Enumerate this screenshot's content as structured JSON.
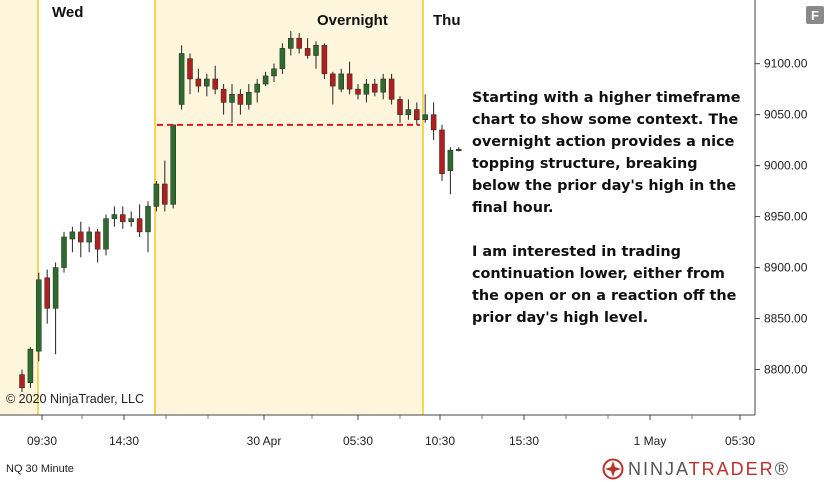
{
  "sessions": [
    "Wed",
    "Overnight",
    "Thu"
  ],
  "annotation": [
    "Starting with a higher timeframe chart to show some context. The overnight action provides a nice topping structure, breaking below the prior day's high in the final hour.",
    "I am interested in trading continuation lower, either from the open or on a reaction off the prior day's high level."
  ],
  "copyright": "© 2020 NinjaTrader, LLC",
  "instrument_label": "NQ 30 Minute",
  "brand": {
    "prefix": "NINJA",
    "accent": "TRADER",
    "suffix": "®"
  },
  "toolbar": {
    "f_label": "F"
  },
  "colors": {
    "up": "#2e6b2e",
    "down": "#b0201c",
    "highlight": "#fdf6dc",
    "session_line": "#f5c100",
    "level_line": "#e01818"
  },
  "chart_data": {
    "type": "candlestick",
    "title": "",
    "ylim": [
      8775,
      9135
    ],
    "yticks": [
      9100,
      9050,
      9000,
      8950,
      8900,
      8850,
      8800
    ],
    "ytick_labels": [
      "9100.00",
      "9050.00",
      "9000.00",
      "8950.00",
      "8900.00",
      "8850.00",
      "8800.00"
    ],
    "xtick_labels": [
      "09:30",
      "14:30",
      "30 Apr",
      "05:30",
      "10:30",
      "15:30",
      "1 May",
      "05:30"
    ],
    "level_price": 9040,
    "candles": [
      {
        "o": 8795,
        "h": 8800,
        "l": 8778,
        "c": 8782
      },
      {
        "o": 8787,
        "h": 8822,
        "l": 8782,
        "c": 8820
      },
      {
        "o": 8818,
        "h": 8895,
        "l": 8808,
        "c": 8888
      },
      {
        "o": 8890,
        "h": 8898,
        "l": 8845,
        "c": 8860
      },
      {
        "o": 8860,
        "h": 8905,
        "l": 8815,
        "c": 8900
      },
      {
        "o": 8900,
        "h": 8935,
        "l": 8895,
        "c": 8930
      },
      {
        "o": 8928,
        "h": 8940,
        "l": 8915,
        "c": 8935
      },
      {
        "o": 8935,
        "h": 8945,
        "l": 8910,
        "c": 8925
      },
      {
        "o": 8925,
        "h": 8940,
        "l": 8915,
        "c": 8935
      },
      {
        "o": 8935,
        "h": 8938,
        "l": 8905,
        "c": 8918
      },
      {
        "o": 8918,
        "h": 8952,
        "l": 8912,
        "c": 8948
      },
      {
        "o": 8948,
        "h": 8960,
        "l": 8940,
        "c": 8952
      },
      {
        "o": 8952,
        "h": 8960,
        "l": 8938,
        "c": 8945
      },
      {
        "o": 8945,
        "h": 8955,
        "l": 8940,
        "c": 8948
      },
      {
        "o": 8948,
        "h": 8962,
        "l": 8930,
        "c": 8935
      },
      {
        "o": 8935,
        "h": 8965,
        "l": 8915,
        "c": 8960
      },
      {
        "o": 8960,
        "h": 8985,
        "l": 8955,
        "c": 8982
      },
      {
        "o": 8982,
        "h": 9005,
        "l": 8955,
        "c": 8962
      },
      {
        "o": 8962,
        "h": 9040,
        "l": 8958,
        "c": 9040
      },
      {
        "o": 9060,
        "h": 9118,
        "l": 9055,
        "c": 9110
      },
      {
        "o": 9105,
        "h": 9110,
        "l": 9070,
        "c": 9085
      },
      {
        "o": 9085,
        "h": 9095,
        "l": 9072,
        "c": 9078
      },
      {
        "o": 9078,
        "h": 9090,
        "l": 9068,
        "c": 9085
      },
      {
        "o": 9085,
        "h": 9098,
        "l": 9070,
        "c": 9075
      },
      {
        "o": 9075,
        "h": 9080,
        "l": 9050,
        "c": 9062
      },
      {
        "o": 9062,
        "h": 9080,
        "l": 9042,
        "c": 9070
      },
      {
        "o": 9070,
        "h": 9075,
        "l": 9050,
        "c": 9060
      },
      {
        "o": 9060,
        "h": 9080,
        "l": 9055,
        "c": 9072
      },
      {
        "o": 9072,
        "h": 9085,
        "l": 9062,
        "c": 9080
      },
      {
        "o": 9080,
        "h": 9092,
        "l": 9078,
        "c": 9088
      },
      {
        "o": 9088,
        "h": 9100,
        "l": 9082,
        "c": 9095
      },
      {
        "o": 9095,
        "h": 9120,
        "l": 9090,
        "c": 9115
      },
      {
        "o": 9115,
        "h": 9132,
        "l": 9108,
        "c": 9125
      },
      {
        "o": 9125,
        "h": 9130,
        "l": 9110,
        "c": 9115
      },
      {
        "o": 9115,
        "h": 9125,
        "l": 9105,
        "c": 9108
      },
      {
        "o": 9108,
        "h": 9122,
        "l": 9095,
        "c": 9118
      },
      {
        "o": 9118,
        "h": 9120,
        "l": 9085,
        "c": 9090
      },
      {
        "o": 9090,
        "h": 9092,
        "l": 9060,
        "c": 9078
      },
      {
        "o": 9075,
        "h": 9095,
        "l": 9072,
        "c": 9090
      },
      {
        "o": 9090,
        "h": 9102,
        "l": 9070,
        "c": 9075
      },
      {
        "o": 9075,
        "h": 9080,
        "l": 9065,
        "c": 9070
      },
      {
        "o": 9070,
        "h": 9085,
        "l": 9062,
        "c": 9080
      },
      {
        "o": 9080,
        "h": 9085,
        "l": 9068,
        "c": 9072
      },
      {
        "o": 9072,
        "h": 9090,
        "l": 9065,
        "c": 9085
      },
      {
        "o": 9085,
        "h": 9090,
        "l": 9060,
        "c": 9065
      },
      {
        "o": 9065,
        "h": 9068,
        "l": 9042,
        "c": 9050
      },
      {
        "o": 9050,
        "h": 9065,
        "l": 9045,
        "c": 9055
      },
      {
        "o": 9055,
        "h": 9062,
        "l": 9040,
        "c": 9045
      },
      {
        "o": 9045,
        "h": 9070,
        "l": 9042,
        "c": 9050
      },
      {
        "o": 9050,
        "h": 9062,
        "l": 9025,
        "c": 9035
      },
      {
        "o": 9035,
        "h": 9040,
        "l": 8985,
        "c": 8992
      },
      {
        "o": 8995,
        "h": 9018,
        "l": 8972,
        "c": 9015
      },
      {
        "o": 9015,
        "h": 9018,
        "l": 9014,
        "c": 9016
      }
    ]
  }
}
